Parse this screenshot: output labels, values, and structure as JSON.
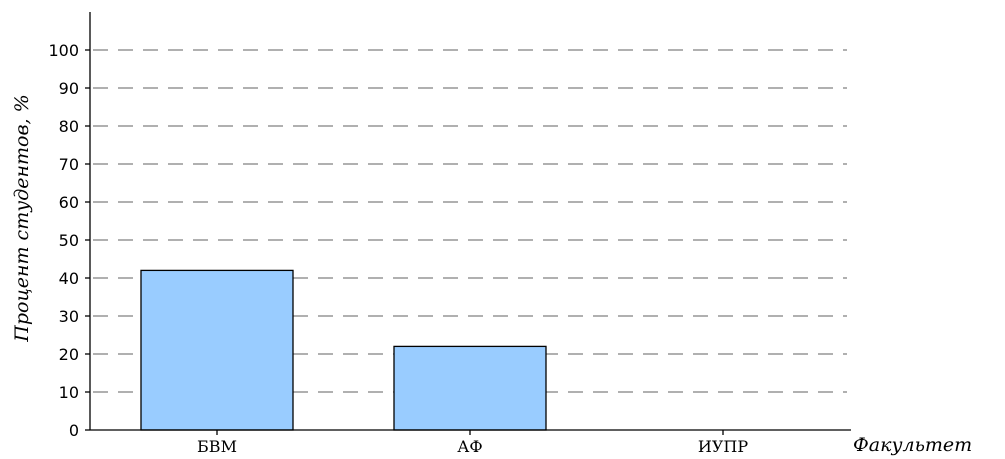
{
  "chart_data": {
    "type": "bar",
    "categories": [
      "БВМ",
      "АФ",
      "ИУПР"
    ],
    "values": [
      42,
      22,
      0
    ],
    "title": "",
    "xlabel": "Факультет",
    "ylabel": "Процент студентов, %",
    "ylim": [
      0,
      100
    ],
    "yticks": [
      0,
      10,
      20,
      30,
      40,
      50,
      60,
      70,
      80,
      90,
      100
    ],
    "grid": true,
    "colors": {
      "bar": "#99ccff",
      "grid": "#808080",
      "axis": "#000000"
    }
  }
}
